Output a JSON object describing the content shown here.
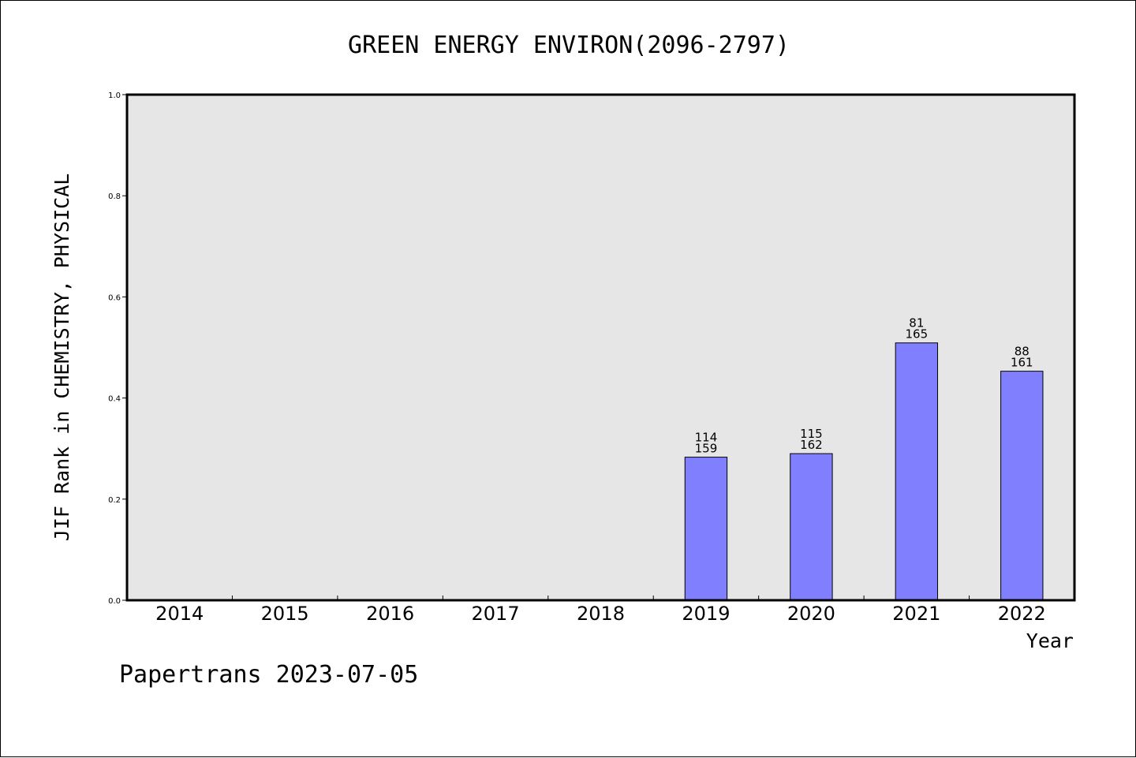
{
  "chart_data": {
    "type": "bar",
    "title": "GREEN ENERGY ENVIRON(2096-2797)",
    "xlabel": "Year",
    "ylabel": "JIF Rank in CHEMISTRY, PHYSICAL",
    "ylim": [
      0,
      1.0
    ],
    "yticks": [
      "0.0",
      "0.2",
      "0.4",
      "0.6",
      "0.8",
      "1.0"
    ],
    "categories": [
      "2014",
      "2015",
      "2016",
      "2017",
      "2018",
      "2019",
      "2020",
      "2021",
      "2022"
    ],
    "values": [
      null,
      null,
      null,
      null,
      null,
      0.283,
      0.29,
      0.509,
      0.453
    ],
    "rank_labels": [
      null,
      null,
      null,
      null,
      null,
      {
        "rank": "114",
        "total": "159"
      },
      {
        "rank": "115",
        "total": "162"
      },
      {
        "rank": "81",
        "total": "165"
      },
      {
        "rank": "88",
        "total": "161"
      }
    ],
    "grid": false,
    "colors": {
      "bar": "#8080ff",
      "plot_bg": "#e6e6e6",
      "axis": "#000000"
    }
  },
  "footer": "Papertrans 2023-07-05"
}
